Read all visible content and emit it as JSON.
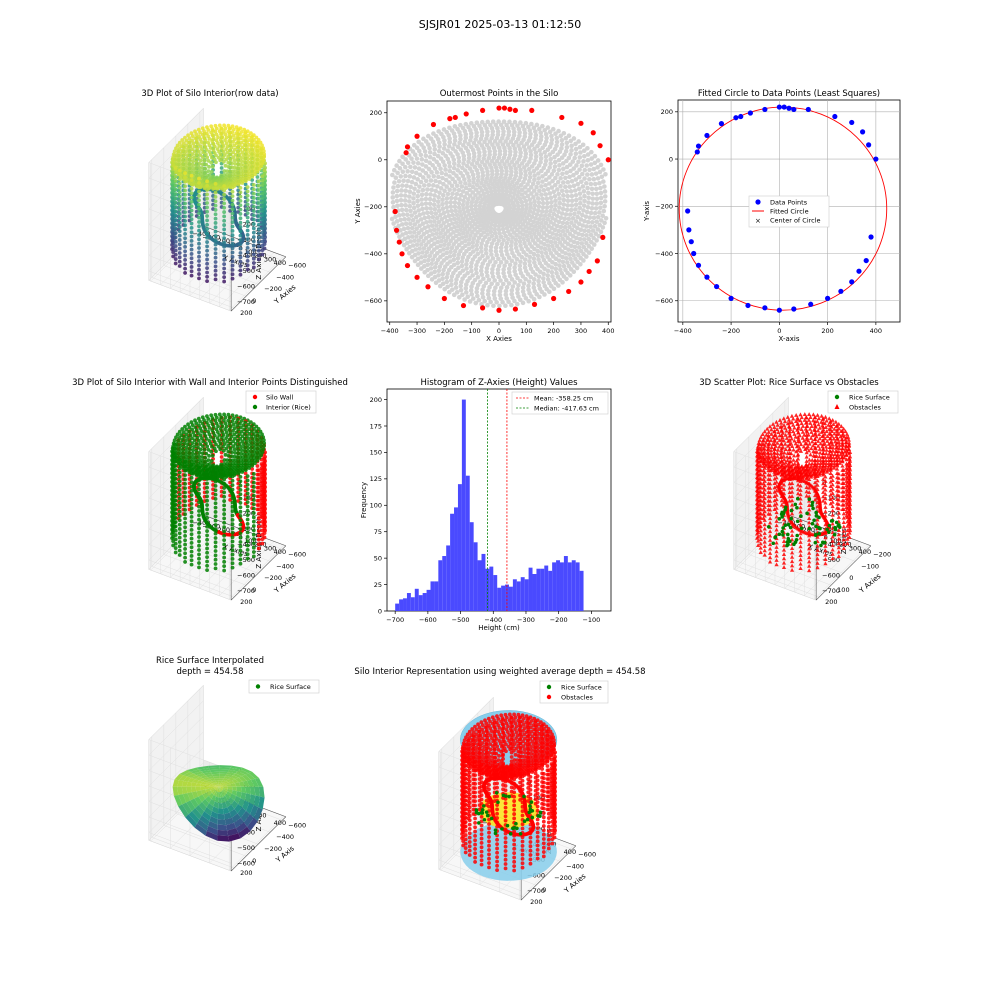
{
  "suptitle": "SJSJR01 2025-03-13 01:12:50",
  "colors": {
    "gray": "#d3d3d3",
    "red": "#ff0000",
    "blue": "#0000ff",
    "green": "#008000",
    "hist": "#4a4aff",
    "sky": "#87ceeb",
    "viridis": [
      "#440154",
      "#3b528b",
      "#21918c",
      "#5ec962",
      "#fde725"
    ]
  },
  "panels": {
    "p3d1": {
      "title": "3D Plot of Silo Interior(row data)",
      "xlabel": "X Axies",
      "ylabel": "Y Axies",
      "zlabel": "Z Axies (Depth)",
      "xticks": [
        "−400",
        "−300",
        "−200",
        "−100",
        "0",
        "100",
        "200",
        "300",
        "400"
      ],
      "yticks": [
        "200",
        "0",
        "−200",
        "−400",
        "−600"
      ],
      "zticks": [
        "0",
        "−100",
        "−200",
        "−300",
        "−400",
        "−500",
        "−600",
        "−700"
      ]
    },
    "p3d2": {
      "title": "3D Plot of Silo Interior with Wall and Interior Points Distinguished",
      "xlabel": "X Axies",
      "ylabel": "Y Axies",
      "zlabel": "Z Axies (Depth)",
      "xticks": [
        "−400",
        "−300",
        "−200",
        "−100",
        "0",
        "100",
        "200",
        "300",
        "400"
      ],
      "yticks": [
        "200",
        "0",
        "−200",
        "−400",
        "−600"
      ],
      "zticks": [
        "0",
        "−100",
        "−200",
        "−300",
        "−400",
        "−500",
        "−600",
        "−700"
      ],
      "legend": [
        "Silo Wall",
        "Interior (Rice)"
      ]
    },
    "p3d3": {
      "title": "3D Scatter Plot: Rice Surface vs Obstacles",
      "xlabel": "X Axies",
      "ylabel": "Y Axies",
      "zlabel": "Z Axies",
      "xticks": [
        "−400",
        "−300",
        "−200",
        "−100",
        "0",
        "100",
        "200",
        "300",
        "400"
      ],
      "yticks": [
        "200",
        "100",
        "0",
        "−100",
        "−200",
        "−300",
        "−400",
        "−500",
        "−600"
      ],
      "zticks": [
        "0",
        "−100",
        "−200",
        "−300",
        "−400",
        "−500",
        "−600",
        "−700"
      ],
      "legend": [
        "Rice Surface",
        "Obstacles"
      ]
    },
    "p3d4": {
      "title1": "Rice Surface Interpolated",
      "title2": "depth = 454.58",
      "xlabel": "X Axis",
      "ylabel": "Y Axis",
      "zlabel": "Z Axis",
      "xticks": [
        "−400",
        "−200",
        "0",
        "200",
        "400"
      ],
      "yticks": [
        "200",
        "0",
        "−200",
        "−400",
        "−600"
      ],
      "zticks": [
        "0",
        "−100",
        "−200",
        "−300",
        "−400",
        "−500",
        "−600"
      ],
      "legend": [
        "Rice Surface"
      ]
    },
    "p3d5": {
      "title": "Silo Interior Representation using weighted average depth = 454.58",
      "xlabel": "X Axies",
      "ylabel": "Y Axies",
      "zlabel": "Z Axies",
      "xticks": [
        "−400",
        "−200",
        "0",
        "200",
        "400"
      ],
      "yticks": [
        "200",
        "0",
        "−200",
        "−400",
        "−600"
      ],
      "zticks": [
        "0",
        "−100",
        "−200",
        "−300",
        "−400",
        "−500",
        "−600",
        "−700"
      ],
      "legend": [
        "Rice Surface",
        "Obstacles"
      ]
    }
  },
  "chart_data": [
    {
      "type": "scatter",
      "title": "Outermost Points in the Silo",
      "xlabel": "X Axies",
      "ylabel": "Y Axies",
      "xlim": [
        -410,
        410
      ],
      "ylim": [
        -690,
        250
      ],
      "xticks": [
        -400,
        -300,
        -200,
        -100,
        0,
        100,
        200,
        300,
        400
      ],
      "yticks": [
        200,
        0,
        -200,
        -400,
        -600
      ],
      "series": [
        {
          "color": "#d3d3d3",
          "note": "interior points, dense cloud",
          "points": []
        },
        {
          "color": "#ff0000",
          "points": [
            [
              400,
              0
            ],
            [
              380,
              -330
            ],
            [
              360,
              -430
            ],
            [
              330,
              -475
            ],
            [
              300,
              -520
            ],
            [
              255,
              -560
            ],
            [
              200,
              -590
            ],
            [
              130,
              -615
            ],
            [
              60,
              -635
            ],
            [
              0,
              -640
            ],
            [
              -60,
              -630
            ],
            [
              -130,
              -620
            ],
            [
              -200,
              -590
            ],
            [
              -260,
              -540
            ],
            [
              -300,
              -500
            ],
            [
              -335,
              -450
            ],
            [
              -355,
              -400
            ],
            [
              -365,
              -350
            ],
            [
              -375,
              -300
            ],
            [
              -380,
              -220
            ],
            [
              -340,
              30
            ],
            [
              -335,
              55
            ],
            [
              -300,
              100
            ],
            [
              -240,
              150
            ],
            [
              -180,
              175
            ],
            [
              -160,
              180
            ],
            [
              -120,
              195
            ],
            [
              -60,
              210
            ],
            [
              0,
              220
            ],
            [
              20,
              220
            ],
            [
              40,
              215
            ],
            [
              60,
              210
            ],
            [
              120,
              210
            ],
            [
              230,
              180
            ],
            [
              300,
              155
            ],
            [
              345,
              115
            ],
            [
              370,
              60
            ]
          ]
        }
      ]
    },
    {
      "type": "scatter",
      "title": "Fitted Circle to Data Points (Least Squares)",
      "xlabel": "X-axis",
      "ylabel": "Y-axis",
      "xlim": [
        -420,
        500
      ],
      "ylim": [
        -690,
        250
      ],
      "xticks": [
        -400,
        -200,
        0,
        200,
        400
      ],
      "yticks": [
        200,
        0,
        -200,
        -400,
        -600
      ],
      "legend": [
        "Data Points",
        "Fitted Circle",
        "Center of Circle"
      ],
      "circle": {
        "cx": 15,
        "cy": -210,
        "r": 430
      },
      "points": [
        [
          400,
          0
        ],
        [
          380,
          -330
        ],
        [
          360,
          -430
        ],
        [
          330,
          -475
        ],
        [
          300,
          -520
        ],
        [
          255,
          -560
        ],
        [
          200,
          -590
        ],
        [
          130,
          -615
        ],
        [
          60,
          -635
        ],
        [
          0,
          -640
        ],
        [
          -60,
          -630
        ],
        [
          -130,
          -620
        ],
        [
          -200,
          -590
        ],
        [
          -260,
          -540
        ],
        [
          -300,
          -500
        ],
        [
          -335,
          -450
        ],
        [
          -355,
          -400
        ],
        [
          -365,
          -350
        ],
        [
          -375,
          -300
        ],
        [
          -380,
          -220
        ],
        [
          -340,
          30
        ],
        [
          -335,
          55
        ],
        [
          -300,
          100
        ],
        [
          -240,
          150
        ],
        [
          -180,
          175
        ],
        [
          -160,
          180
        ],
        [
          -120,
          195
        ],
        [
          -60,
          210
        ],
        [
          0,
          220
        ],
        [
          20,
          220
        ],
        [
          40,
          215
        ],
        [
          60,
          210
        ],
        [
          120,
          210
        ],
        [
          230,
          180
        ],
        [
          300,
          155
        ],
        [
          345,
          115
        ],
        [
          370,
          60
        ]
      ]
    },
    {
      "type": "bar",
      "title": "Histogram of Z-Axies (Height) Values",
      "xlabel": "Height (cm)",
      "ylabel": "Frequency",
      "xlim": [
        -725,
        -40
      ],
      "ylim": [
        0,
        210
      ],
      "xticks": [
        -700,
        -600,
        -500,
        -400,
        -300,
        -200,
        -100
      ],
      "yticks": [
        0,
        25,
        50,
        75,
        100,
        125,
        150,
        175,
        200
      ],
      "bin_start": -700,
      "bin_width": 12,
      "values": [
        7,
        11,
        12,
        17,
        13,
        21,
        15,
        17,
        20,
        28,
        28,
        48,
        52,
        62,
        92,
        98,
        120,
        200,
        128,
        84,
        65,
        48,
        54,
        40,
        42,
        34,
        22,
        24,
        25,
        23,
        30,
        28,
        32,
        30,
        41,
        35,
        40,
        40,
        43,
        38,
        46,
        48,
        46,
        52,
        46,
        48,
        46,
        38
      ],
      "mean": -358.25,
      "median": -417.63,
      "legend": [
        "Mean: -358.25 cm",
        "Median: -417.63 cm"
      ]
    }
  ]
}
